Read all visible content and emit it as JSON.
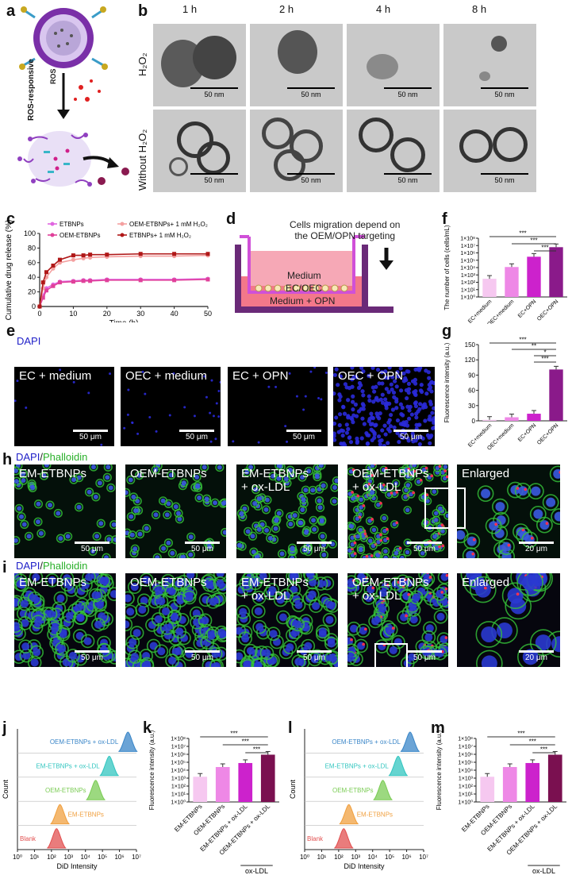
{
  "panel_labels": [
    "a",
    "b",
    "c",
    "d",
    "e",
    "f",
    "g",
    "h",
    "i",
    "j",
    "k",
    "l",
    "m"
  ],
  "panel_a": {
    "arrow_label": "ROS-responsive",
    "ros_label": "ROS"
  },
  "panel_b": {
    "times": [
      "1 h",
      "2 h",
      "4 h",
      "8 h"
    ],
    "rows": [
      "H₂O₂",
      "Without H₂O₂"
    ],
    "scale": "50 nm"
  },
  "panel_c": {
    "chart_data": {
      "type": "line",
      "xlabel": "Time (h)",
      "ylabel": "Cumulative drug release (%)",
      "xlim": [
        0,
        50
      ],
      "ylim": [
        0,
        100
      ],
      "xticks": [
        0,
        10,
        20,
        30,
        40,
        50
      ],
      "yticks": [
        0,
        20,
        40,
        60,
        80,
        100
      ],
      "x": [
        0,
        1,
        2,
        4,
        6,
        10,
        13,
        15,
        20,
        30,
        40,
        50
      ],
      "series": [
        {
          "name": "ETBNPs",
          "color": "#e066e0",
          "values": [
            0,
            15,
            25,
            30,
            34,
            35,
            36,
            36,
            37,
            37,
            37,
            38
          ]
        },
        {
          "name": "OEM-ETBNPs",
          "color": "#e0409a",
          "values": [
            0,
            12,
            22,
            28,
            33,
            34,
            35,
            35,
            36,
            36,
            36,
            37
          ]
        },
        {
          "name": "OEM-ETBNPs+ 1 mM H₂O₂",
          "color": "#f4a0a0",
          "values": [
            0,
            25,
            40,
            52,
            60,
            64,
            66,
            67,
            68,
            69,
            69,
            70
          ]
        },
        {
          "name": "ETBNPs+ 1 mM H₂O₂",
          "color": "#b01818",
          "values": [
            0,
            33,
            47,
            56,
            64,
            70,
            70,
            71,
            71,
            72,
            72,
            72
          ]
        }
      ]
    }
  },
  "panel_d": {
    "title_line1": "Cells migration depend on",
    "title_line2": "the OEM/OPN targeting",
    "medium": "Medium",
    "cells": "EC/OEC",
    "medium_opn": "Medium + OPN"
  },
  "panel_e": {
    "stain": "DAPI",
    "groups": [
      "EC + medium",
      "OEC + medium",
      "EC + OPN",
      "OEC + OPN"
    ],
    "scale": "50 μm"
  },
  "panel_f": {
    "chart_data": {
      "type": "bar",
      "categories": [
        "EC+medium",
        "OEC+medium",
        "EC+OPN",
        "OEC+OPN"
      ],
      "values": [
        300,
        12000,
        300000,
        6000000
      ],
      "ylabel": "The number of cells (cells/mL)",
      "yscale": "log",
      "yticks": [
        "1×10⁰",
        "1×10¹",
        "1×10²",
        "1×10³",
        "1×10⁴",
        "1×10⁵",
        "1×10⁶",
        "1×10⁷",
        "1×10⁸"
      ],
      "colors": [
        "#f6c8f0",
        "#ee88e6",
        "#cc22cc",
        "#8a1a8a"
      ],
      "significance": [
        "***",
        "***",
        "***"
      ]
    }
  },
  "panel_g": {
    "chart_data": {
      "type": "bar",
      "categories": [
        "EC+medium",
        "OEC+medium",
        "EC+OPN",
        "OEC+OPN"
      ],
      "values": [
        2,
        7,
        14,
        101
      ],
      "ylabel": "Fluorescence intensity (a.u.)",
      "ylim": [
        0,
        150
      ],
      "yticks": [
        0,
        30,
        60,
        90,
        120,
        150
      ],
      "colors": [
        "#f6c8f0",
        "#ee88e6",
        "#cc22cc",
        "#8a1a8a"
      ],
      "significance": [
        "***",
        "**",
        "*",
        "***"
      ]
    }
  },
  "panel_h": {
    "stain_a": "DAPI",
    "stain_b": "Phalloidin",
    "groups": [
      "EM-ETBNPs",
      "OEM-ETBNPs",
      "EM-ETBNPs\n+ ox-LDL",
      "OEM-ETBNPs\n+ ox-LDL",
      "Enlarged"
    ],
    "scales": [
      "50 μm",
      "50 μm",
      "50 μm",
      "50 μm",
      "20 μm"
    ]
  },
  "panel_i": {
    "stain_a": "DAPI",
    "stain_b": "Phalloidin",
    "groups": [
      "EM-ETBNPs",
      "OEM-ETBNPs",
      "EM-ETBNPs\n+ ox-LDL",
      "OEM-ETBNPs\n+ ox-LDL",
      "Enlarged"
    ],
    "scales": [
      "50 μm",
      "50 μm",
      "50 μm",
      "50 μm",
      "20 μm"
    ]
  },
  "panel_j": {
    "chart_data": {
      "type": "area",
      "xlabel": "DiD Intensity",
      "ylabel": "Count",
      "xscale": "log",
      "xticks": [
        "10⁰",
        "10¹",
        "10²",
        "10³",
        "10⁴",
        "10⁵",
        "10⁶",
        "10⁷"
      ],
      "series": [
        {
          "name": "OEM-ETBNPs + ox-LDL",
          "color": "#3a86c8",
          "peak_log10": 6.5
        },
        {
          "name": "EM-ETBNPs + ox-LDL",
          "color": "#33c6c0",
          "peak_log10": 5.4
        },
        {
          "name": "OEM-ETBNPs",
          "color": "#7bcc55",
          "peak_log10": 4.6
        },
        {
          "name": "EM-ETBNPs",
          "color": "#f0a040",
          "peak_log10": 2.5
        },
        {
          "name": "Blank",
          "color": "#e25050",
          "peak_log10": 2.3
        }
      ]
    }
  },
  "panel_k": {
    "chart_data": {
      "type": "bar",
      "categories": [
        "EM-ETBNPs",
        "OEM-ETBNPs",
        "EM-ETBNPs + ox-LDL",
        "OEM-ETBNPs + ox-LDL"
      ],
      "values": [
        1500,
        25000,
        80000,
        900000
      ],
      "ylabel": "Fluorescence intensity (a.u.)",
      "yscale": "log",
      "yticks": [
        "1×10⁰",
        "1×10¹",
        "1×10²",
        "1×10³",
        "1×10⁴",
        "1×10⁵",
        "1×10⁶",
        "1×10⁷",
        "1×10⁸"
      ],
      "colors": [
        "#f6c8f0",
        "#ee88e6",
        "#cc22cc",
        "#7a1050"
      ],
      "significance": [
        "***",
        "***",
        "***"
      ],
      "footer": "ox-LDL"
    }
  },
  "panel_l": {
    "chart_data": {
      "type": "area",
      "xlabel": "DiD Intensity",
      "ylabel": "Count",
      "xscale": "log",
      "xticks": [
        "10⁰",
        "10¹",
        "10²",
        "10³",
        "10⁴",
        "10⁵",
        "10⁶",
        "10⁷"
      ],
      "series": [
        {
          "name": "OEM-ETBNPs + ox-LDL",
          "color": "#3a86c8",
          "peak_log10": 6.2
        },
        {
          "name": "EM-ETBNPs + ox-LDL",
          "color": "#33c6c0",
          "peak_log10": 5.5
        },
        {
          "name": "OEM-ETBNPs",
          "color": "#7bcc55",
          "peak_log10": 4.6
        },
        {
          "name": "EM-ETBNPs",
          "color": "#f0a040",
          "peak_log10": 2.6
        },
        {
          "name": "Blank",
          "color": "#e25050",
          "peak_log10": 2.3
        }
      ]
    }
  },
  "panel_m": {
    "chart_data": {
      "type": "bar",
      "categories": [
        "EM-ETBNPs",
        "OEM-ETBNPs",
        "EM-ETBNPs + ox-LDL",
        "OEM-ETBNPs + ox-LDL"
      ],
      "values": [
        1500,
        25000,
        80000,
        900000
      ],
      "ylabel": "Fluorescence intensity (a.u.)",
      "yscale": "log",
      "yticks": [
        "1×10⁰",
        "1×10¹",
        "1×10²",
        "1×10³",
        "1×10⁴",
        "1×10⁵",
        "1×10⁶",
        "1×10⁷",
        "1×10⁸"
      ],
      "colors": [
        "#f6c8f0",
        "#ee88e6",
        "#cc22cc",
        "#7a1050"
      ],
      "significance": [
        "***",
        "***",
        "***"
      ],
      "footer": "ox-LDL"
    }
  }
}
